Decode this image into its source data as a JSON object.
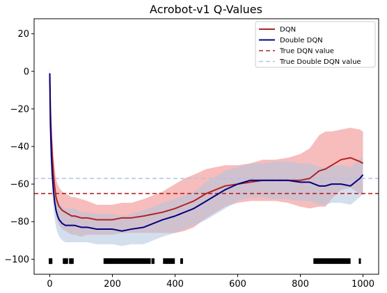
{
  "chart_data": {
    "type": "line",
    "title": "Acrobot-v1 Q-Values",
    "xlabel": "",
    "ylabel": "",
    "xlim": [
      -50,
      1050
    ],
    "ylim": [
      -108,
      28
    ],
    "xticks": [
      0,
      200,
      400,
      600,
      800,
      1000
    ],
    "yticks": [
      20,
      0,
      -20,
      -40,
      -60,
      -80,
      -100
    ],
    "grid": false,
    "legend": {
      "placement": "top-right"
    },
    "series": [
      {
        "name": "DQN",
        "kind": "line",
        "color": "#b22222",
        "band_color": "#f4a0a0",
        "x": [
          0,
          2,
          5,
          8,
          12,
          16,
          20,
          25,
          30,
          40,
          50,
          60,
          70,
          80,
          100,
          120,
          150,
          180,
          200,
          230,
          260,
          300,
          330,
          360,
          400,
          430,
          460,
          500,
          530,
          560,
          600,
          640,
          680,
          720,
          760,
          800,
          830,
          860,
          880,
          900,
          930,
          960,
          990,
          1000
        ],
        "y": [
          -1,
          -20,
          -35,
          -45,
          -55,
          -62,
          -67,
          -70,
          -72,
          -74,
          -75,
          -76,
          -77,
          -77,
          -78,
          -78,
          -79,
          -79,
          -79,
          -78,
          -78,
          -77,
          -76,
          -75,
          -73,
          -71,
          -69,
          -65,
          -63,
          -61,
          -60,
          -59,
          -58,
          -58,
          -58,
          -58,
          -57,
          -53,
          -52,
          -50,
          -47,
          -46,
          -48,
          -49
        ],
        "band": [
          4,
          8,
          10,
          10,
          10,
          10,
          10,
          10,
          10,
          10,
          10,
          10,
          10,
          10,
          10,
          9,
          8,
          8,
          8,
          8,
          8,
          9,
          10,
          11,
          13,
          14,
          14,
          13,
          12,
          11,
          10,
          10,
          11,
          11,
          12,
          14,
          16,
          19,
          20,
          18,
          16,
          16,
          17,
          17
        ]
      },
      {
        "name": "Double DQN",
        "kind": "line",
        "color": "#00007f",
        "band_color": "#b0c4de",
        "x": [
          0,
          2,
          5,
          8,
          12,
          16,
          20,
          25,
          30,
          40,
          50,
          60,
          70,
          80,
          100,
          120,
          150,
          180,
          200,
          230,
          260,
          300,
          330,
          360,
          400,
          430,
          460,
          500,
          530,
          560,
          600,
          640,
          680,
          720,
          760,
          800,
          830,
          860,
          880,
          900,
          930,
          960,
          990,
          1000
        ],
        "y": [
          -1,
          -28,
          -45,
          -55,
          -64,
          -70,
          -74,
          -77,
          -79,
          -81,
          -82,
          -82,
          -82,
          -82,
          -83,
          -83,
          -84,
          -84,
          -84,
          -85,
          -84,
          -83,
          -81,
          -79,
          -77,
          -75,
          -73,
          -69,
          -66,
          -63,
          -60,
          -58,
          -58,
          -58,
          -58,
          -59,
          -59,
          -61,
          -61,
          -60,
          -60,
          -61,
          -57,
          -55
        ],
        "band": [
          5,
          8,
          9,
          9,
          9,
          9,
          9,
          9,
          9,
          9,
          9,
          9,
          9,
          9,
          8,
          8,
          8,
          8,
          8,
          8,
          8,
          9,
          9,
          9,
          9,
          9,
          9,
          10,
          10,
          10,
          9,
          9,
          9,
          10,
          10,
          10,
          10,
          10,
          10,
          10,
          10,
          10,
          10,
          10
        ]
      },
      {
        "name": "True DQN value",
        "kind": "hline",
        "color": "#b22222",
        "dash": "6,4",
        "y": -65
      },
      {
        "name": "True Double DQN value",
        "kind": "hline",
        "color": "#b0c4de",
        "dash": "6,4",
        "y": -57
      }
    ],
    "markers": {
      "y": -101,
      "color": "#000000",
      "x": [
        0,
        1,
        2,
        3,
        4,
        5,
        45,
        47,
        49,
        51,
        53,
        55,
        65,
        67,
        69,
        71,
        73,
        175,
        178,
        181,
        184,
        187,
        190,
        193,
        196,
        200,
        204,
        208,
        212,
        216,
        220,
        224,
        228,
        232,
        236,
        240,
        244,
        248,
        252,
        256,
        260,
        264,
        268,
        272,
        276,
        280,
        284,
        288,
        292,
        296,
        300,
        304,
        308,
        312,
        316,
        319,
        328,
        331,
        365,
        368,
        372,
        376,
        380,
        384,
        388,
        392,
        396,
        420,
        422,
        845,
        849,
        853,
        857,
        861,
        865,
        869,
        873,
        877,
        881,
        885,
        889,
        893,
        897,
        901,
        905,
        909,
        913,
        917,
        921,
        925,
        929,
        933,
        937,
        941,
        945,
        949,
        953,
        957,
        990
      ]
    }
  }
}
